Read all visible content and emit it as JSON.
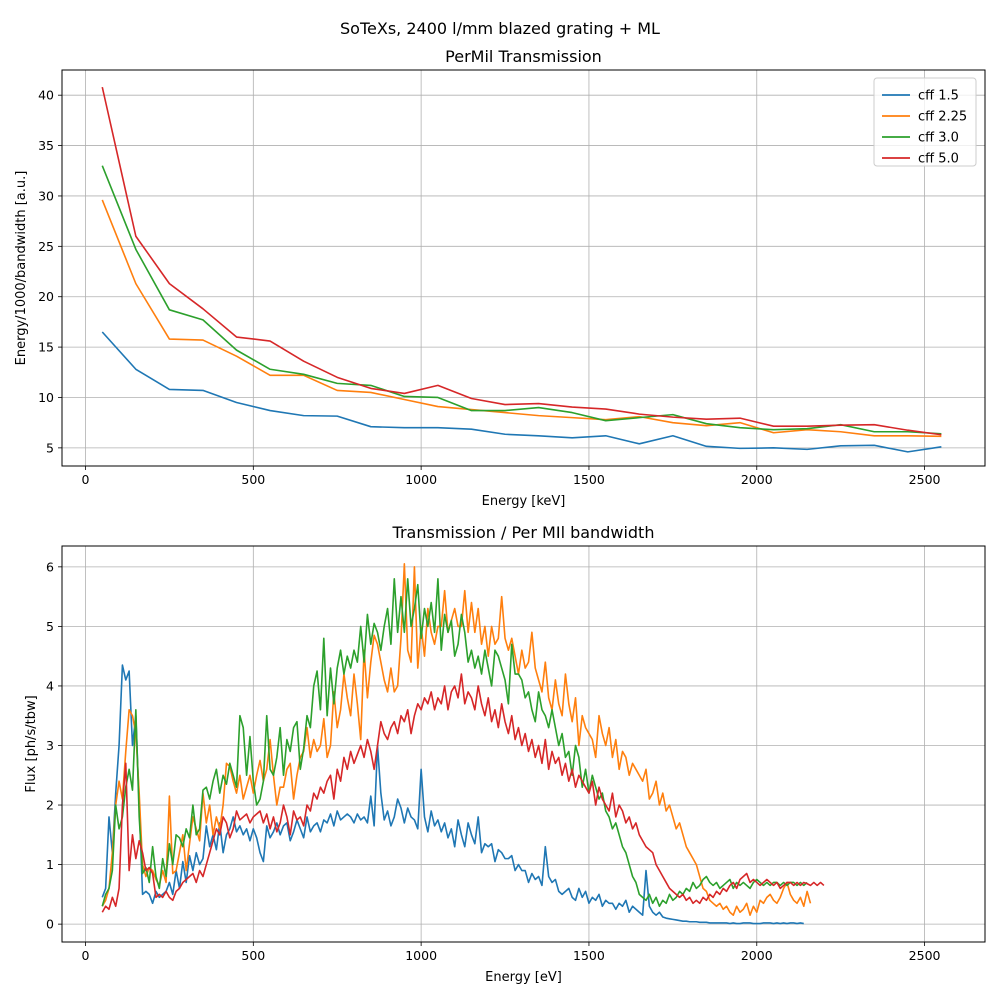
{
  "figure": {
    "suptitle": "SoTeXs, 2400 l/mm blazed grating + ML"
  },
  "chart_data": [
    {
      "type": "line",
      "title": "PerMil Transmission",
      "xlabel": "Energy [keV]",
      "ylabel": "Energy/1000/bandwidth [a.u.]",
      "xlim": [
        -70,
        2680
      ],
      "ylim": [
        3.2,
        42.5
      ],
      "xticks": [
        0,
        500,
        1000,
        1500,
        2000,
        2500
      ],
      "yticks": [
        5,
        10,
        15,
        20,
        25,
        30,
        35,
        40
      ],
      "xtick_labels": [
        "0",
        "500",
        "1000",
        "1500",
        "2000",
        "2500"
      ],
      "ytick_labels": [
        "5",
        "10",
        "15",
        "20",
        "25",
        "30",
        "35",
        "40"
      ],
      "grid": true,
      "legend": "top-right",
      "x": [
        50,
        150,
        250,
        350,
        450,
        550,
        650,
        750,
        850,
        950,
        1050,
        1150,
        1250,
        1350,
        1450,
        1550,
        1650,
        1750,
        1850,
        1950,
        2050,
        2150,
        2250,
        2350,
        2450,
        2550
      ],
      "series": [
        {
          "name": "cff 1.5",
          "color": "#1f77b4",
          "values": [
            16.5,
            12.8,
            10.8,
            10.7,
            9.5,
            8.7,
            8.2,
            8.15,
            7.1,
            7.0,
            7.0,
            6.85,
            6.35,
            6.2,
            6.0,
            6.2,
            5.4,
            6.2,
            5.15,
            4.95,
            5.0,
            4.85,
            5.2,
            5.25,
            4.6,
            5.1
          ]
        },
        {
          "name": "cff 2.25",
          "color": "#ff7f0e",
          "values": [
            29.6,
            21.3,
            15.8,
            15.7,
            14.1,
            12.2,
            12.2,
            10.7,
            10.5,
            9.8,
            9.1,
            8.8,
            8.5,
            8.2,
            8.0,
            7.8,
            8.1,
            7.5,
            7.2,
            7.5,
            6.5,
            6.8,
            6.6,
            6.2,
            6.2,
            6.15
          ]
        },
        {
          "name": "cff 3.0",
          "color": "#2ca02c",
          "values": [
            33.0,
            24.7,
            18.7,
            17.7,
            14.7,
            12.8,
            12.3,
            11.4,
            11.2,
            10.1,
            10.0,
            8.7,
            8.7,
            9.0,
            8.5,
            7.7,
            8.0,
            8.3,
            7.4,
            7.0,
            6.8,
            6.9,
            7.3,
            6.6,
            6.6,
            6.4
          ]
        },
        {
          "name": "cff 5.0",
          "color": "#d62728",
          "values": [
            40.8,
            26.0,
            21.3,
            18.8,
            16.0,
            15.6,
            13.6,
            12.0,
            10.9,
            10.4,
            11.2,
            9.9,
            9.3,
            9.4,
            9.05,
            8.85,
            8.35,
            8.05,
            7.85,
            7.95,
            7.15,
            7.15,
            7.25,
            7.3,
            6.75,
            6.3
          ]
        }
      ]
    },
    {
      "type": "line",
      "title": "Transmission / Per MIl bandwidth",
      "xlabel": "Energy [eV]",
      "ylabel": "Flux [ph/s/tbw]",
      "xlim": [
        -70,
        2680
      ],
      "ylim": [
        -0.3,
        6.35
      ],
      "xticks": [
        0,
        500,
        1000,
        1500,
        2000,
        2500
      ],
      "yticks": [
        0,
        1,
        2,
        3,
        4,
        5,
        6
      ],
      "xtick_labels": [
        "0",
        "500",
        "1000",
        "1500",
        "2000",
        "2500"
      ],
      "ytick_labels": [
        "0",
        "1",
        "2",
        "3",
        "4",
        "5",
        "6"
      ],
      "grid": true,
      "legend": "none",
      "x_start": 50,
      "x_step": 10,
      "series": [
        {
          "name": "cff 1.5",
          "color": "#1f77b4",
          "values": [
            0.45,
            0.6,
            1.8,
            1.2,
            2.2,
            3.0,
            4.35,
            4.1,
            4.25,
            3.0,
            3.5,
            2.0,
            0.5,
            0.55,
            0.5,
            0.35,
            0.55,
            0.45,
            0.5,
            0.55,
            0.7,
            0.5,
            0.9,
            0.6,
            1.05,
            0.7,
            1.15,
            0.9,
            1.2,
            1.0,
            1.1,
            1.65,
            1.3,
            1.5,
            1.25,
            1.7,
            1.2,
            1.5,
            1.6,
            1.8,
            1.55,
            1.65,
            1.5,
            1.6,
            1.4,
            1.6,
            1.45,
            1.2,
            1.05,
            1.65,
            1.45,
            1.55,
            1.7,
            1.5,
            1.65,
            1.7,
            1.4,
            1.55,
            1.75,
            1.6,
            1.45,
            1.8,
            1.55,
            1.65,
            1.7,
            1.55,
            1.75,
            1.7,
            1.85,
            1.65,
            1.9,
            1.75,
            1.8,
            1.85,
            1.8,
            1.7,
            1.85,
            1.75,
            1.8,
            1.7,
            2.15,
            1.65,
            3.0,
            2.2,
            1.75,
            1.9,
            1.65,
            1.8,
            2.1,
            1.95,
            1.7,
            1.95,
            1.8,
            1.75,
            1.6,
            2.6,
            1.8,
            1.55,
            1.9,
            1.65,
            1.75,
            1.55,
            1.7,
            1.45,
            1.6,
            1.3,
            1.75,
            1.5,
            1.3,
            1.7,
            1.5,
            1.35,
            1.8,
            1.2,
            1.35,
            1.3,
            1.35,
            1.05,
            1.25,
            1.2,
            1.1,
            1.1,
            1.15,
            0.9,
            1.0,
            0.9,
            0.9,
            0.7,
            0.85,
            0.75,
            0.8,
            0.65,
            1.3,
            0.8,
            0.7,
            0.75,
            0.55,
            0.5,
            0.55,
            0.6,
            0.45,
            0.4,
            0.6,
            0.45,
            0.55,
            0.35,
            0.45,
            0.4,
            0.5,
            0.3,
            0.4,
            0.35,
            0.35,
            0.25,
            0.35,
            0.3,
            0.4,
            0.2,
            0.3,
            0.25,
            0.2,
            0.15,
            0.9,
            0.3,
            0.2,
            0.15,
            0.2,
            0.12,
            0.1,
            0.09,
            0.08,
            0.07,
            0.06,
            0.05,
            0.05,
            0.04,
            0.04,
            0.04,
            0.03,
            0.03,
            0.03,
            0.02,
            0.02,
            0.02,
            0.02,
            0.02,
            0.02,
            0.01,
            0.02,
            0.01,
            0.01,
            0.02,
            0.02,
            0.02,
            0.01,
            0.01,
            0.01,
            0.02,
            0.02,
            0.02,
            0.01,
            0.02,
            0.01,
            0.02,
            0.01,
            0.02,
            0.02,
            0.01,
            0.02,
            0.01
          ]
        },
        {
          "name": "cff 2.25",
          "color": "#ff7f0e",
          "values": [
            0.3,
            0.4,
            0.6,
            1.2,
            2.0,
            2.4,
            2.1,
            2.9,
            3.6,
            3.5,
            3.2,
            2.2,
            1.0,
            0.8,
            0.95,
            0.9,
            0.75,
            0.65,
            0.9,
            0.7,
            2.15,
            0.85,
            0.9,
            1.2,
            1.5,
            0.9,
            1.35,
            1.8,
            1.6,
            1.4,
            2.2,
            1.7,
            2.0,
            1.5,
            1.8,
            1.6,
            2.0,
            2.7,
            2.65,
            2.4,
            2.2,
            2.5,
            2.1,
            2.3,
            2.5,
            2.2,
            2.5,
            2.75,
            2.4,
            2.6,
            3.1,
            2.5,
            2.0,
            2.3,
            2.3,
            2.6,
            2.7,
            2.1,
            2.5,
            2.8,
            2.9,
            3.3,
            2.8,
            3.1,
            2.9,
            3.0,
            3.45,
            2.8,
            3.0,
            3.9,
            3.3,
            3.6,
            4.2,
            3.8,
            3.5,
            4.2,
            3.7,
            3.1,
            4.6,
            3.8,
            4.4,
            4.85,
            4.7,
            4.4,
            4.1,
            3.9,
            4.3,
            3.9,
            4.0,
            4.8,
            6.05,
            4.6,
            4.4,
            6.0,
            4.3,
            5.0,
            4.5,
            5.3,
            4.9,
            4.7,
            5.0,
            5.0,
            5.6,
            4.9,
            5.1,
            5.3,
            5.0,
            5.0,
            5.6,
            4.9,
            5.4,
            4.9,
            5.3,
            4.7,
            5.0,
            4.5,
            5.0,
            4.7,
            4.8,
            5.5,
            4.8,
            4.6,
            4.8,
            4.5,
            4.2,
            4.6,
            4.3,
            4.4,
            4.9,
            4.3,
            4.1,
            3.9,
            4.4,
            3.8,
            3.6,
            4.1,
            3.7,
            3.5,
            4.2,
            3.7,
            3.4,
            3.8,
            3.0,
            3.5,
            3.3,
            3.2,
            3.1,
            2.8,
            3.5,
            3.2,
            3.0,
            3.3,
            2.8,
            3.1,
            2.6,
            2.9,
            2.8,
            2.5,
            2.7,
            2.6,
            2.5,
            2.4,
            2.6,
            2.1,
            2.2,
            2.4,
            2.0,
            2.2,
            1.9,
            2.0,
            1.8,
            1.6,
            1.7,
            1.5,
            1.3,
            1.2,
            1.1,
            1.0,
            0.8,
            0.6,
            0.55,
            0.4,
            0.35,
            0.3,
            0.35,
            0.25,
            0.3,
            0.2,
            0.15,
            0.3,
            0.2,
            0.25,
            0.35,
            0.15,
            0.3,
            0.2,
            0.4,
            0.35,
            0.45,
            0.5,
            0.4,
            0.35,
            0.45,
            0.6,
            0.7,
            0.5,
            0.4,
            0.35,
            0.45,
            0.3,
            0.55,
            0.35
          ]
        },
        {
          "name": "cff 3.0",
          "color": "#2ca02c",
          "values": [
            0.3,
            0.5,
            0.6,
            0.9,
            2.0,
            1.6,
            1.8,
            2.3,
            2.6,
            2.25,
            3.6,
            1.8,
            0.85,
            0.95,
            0.7,
            1.3,
            0.8,
            0.6,
            1.1,
            0.8,
            1.35,
            1.0,
            1.5,
            1.45,
            1.3,
            1.6,
            1.45,
            2.0,
            1.5,
            1.6,
            2.25,
            2.3,
            2.1,
            2.4,
            2.6,
            2.2,
            2.5,
            2.35,
            2.7,
            2.5,
            2.3,
            3.5,
            3.3,
            2.5,
            3.15,
            2.4,
            2.0,
            2.1,
            2.4,
            3.5,
            2.6,
            2.5,
            2.8,
            3.3,
            2.5,
            3.1,
            2.9,
            3.3,
            3.4,
            2.6,
            2.95,
            3.5,
            3.3,
            4.0,
            4.25,
            3.6,
            4.8,
            3.5,
            4.3,
            3.7,
            4.3,
            4.6,
            4.2,
            4.5,
            4.3,
            4.6,
            4.4,
            5.0,
            4.4,
            5.2,
            4.7,
            5.05,
            4.9,
            4.6,
            5.0,
            5.3,
            4.7,
            5.8,
            4.9,
            5.5,
            4.9,
            5.8,
            5.0,
            5.3,
            5.7,
            4.8,
            5.3,
            5.0,
            5.4,
            4.9,
            5.8,
            4.6,
            5.2,
            4.9,
            5.1,
            4.5,
            4.7,
            5.2,
            4.9,
            4.4,
            4.6,
            4.3,
            4.5,
            4.2,
            4.6,
            4.3,
            4.0,
            4.6,
            4.5,
            4.3,
            4.1,
            3.7,
            4.7,
            4.2,
            4.2,
            4.1,
            3.8,
            3.9,
            3.6,
            3.4,
            3.9,
            3.6,
            3.5,
            3.3,
            3.6,
            3.3,
            3.0,
            3.2,
            2.8,
            2.9,
            2.5,
            3.0,
            2.8,
            2.3,
            2.6,
            2.2,
            2.5,
            2.3,
            2.1,
            2.2,
            1.9,
            1.8,
            1.6,
            1.7,
            1.5,
            1.3,
            1.2,
            1.0,
            0.8,
            0.7,
            0.5,
            0.45,
            0.4,
            0.5,
            0.35,
            0.45,
            0.3,
            0.4,
            0.35,
            0.5,
            0.4,
            0.45,
            0.55,
            0.5,
            0.6,
            0.55,
            0.7,
            0.6,
            0.65,
            0.75,
            0.8,
            0.7,
            0.65,
            0.7,
            0.6,
            0.65,
            0.7,
            0.75,
            0.6,
            0.7,
            0.65,
            0.7,
            0.65,
            0.6,
            0.7,
            0.75,
            0.7,
            0.65,
            0.7,
            0.65,
            0.7,
            0.7,
            0.65,
            0.7,
            0.65,
            0.7,
            0.7,
            0.65,
            0.7,
            0.65,
            0.7
          ]
        },
        {
          "name": "cff 5.0",
          "color": "#d62728",
          "values": [
            0.2,
            0.3,
            0.25,
            0.45,
            0.3,
            0.6,
            2.0,
            2.7,
            0.9,
            1.5,
            1.1,
            1.4,
            1.2,
            0.9,
            0.95,
            0.85,
            0.45,
            0.5,
            0.45,
            0.55,
            0.45,
            0.4,
            0.55,
            0.6,
            0.7,
            0.75,
            0.8,
            0.85,
            0.7,
            0.9,
            0.8,
            1.0,
            1.2,
            1.4,
            1.6,
            1.5,
            1.8,
            1.7,
            1.45,
            1.6,
            1.9,
            1.75,
            1.8,
            1.85,
            1.7,
            1.8,
            1.85,
            1.9,
            1.7,
            1.85,
            1.6,
            1.8,
            1.55,
            1.7,
            2.0,
            1.8,
            1.5,
            1.9,
            1.75,
            1.8,
            1.65,
            2.0,
            1.9,
            2.2,
            2.1,
            2.3,
            2.2,
            2.4,
            2.5,
            2.1,
            2.6,
            2.4,
            2.8,
            2.6,
            2.9,
            2.7,
            2.85,
            3.0,
            2.8,
            3.1,
            2.9,
            2.6,
            3.0,
            3.4,
            3.2,
            3.1,
            3.3,
            3.4,
            3.2,
            3.5,
            3.4,
            3.6,
            3.2,
            3.5,
            3.7,
            3.6,
            3.8,
            3.7,
            3.9,
            3.6,
            3.8,
            3.7,
            4.0,
            3.6,
            3.9,
            4.0,
            3.8,
            4.2,
            3.7,
            3.9,
            3.8,
            3.6,
            4.0,
            3.7,
            3.5,
            3.8,
            3.4,
            3.6,
            3.3,
            3.7,
            3.4,
            3.2,
            3.5,
            3.1,
            3.3,
            3.0,
            3.2,
            2.9,
            3.1,
            2.8,
            3.0,
            2.7,
            3.1,
            2.6,
            2.9,
            2.7,
            2.8,
            2.5,
            2.7,
            2.4,
            2.6,
            2.3,
            2.5,
            2.4,
            2.3,
            2.2,
            2.4,
            2.0,
            2.3,
            2.1,
            2.0,
            1.9,
            2.2,
            1.8,
            2.0,
            1.9,
            1.7,
            1.8,
            1.6,
            1.7,
            1.5,
            1.4,
            1.3,
            1.25,
            1.2,
            1.0,
            0.9,
            0.8,
            0.7,
            0.6,
            0.55,
            0.5,
            0.45,
            0.5,
            0.4,
            0.45,
            0.35,
            0.4,
            0.35,
            0.45,
            0.4,
            0.5,
            0.45,
            0.55,
            0.5,
            0.6,
            0.55,
            0.65,
            0.7,
            0.6,
            0.75,
            0.8,
            0.85,
            0.7,
            0.75,
            0.7,
            0.65,
            0.7,
            0.75,
            0.7,
            0.65,
            0.7,
            0.6,
            0.65,
            0.7,
            0.7,
            0.65,
            0.7,
            0.65,
            0.7,
            0.68,
            0.65,
            0.7,
            0.65,
            0.7,
            0.65
          ]
        }
      ]
    }
  ]
}
